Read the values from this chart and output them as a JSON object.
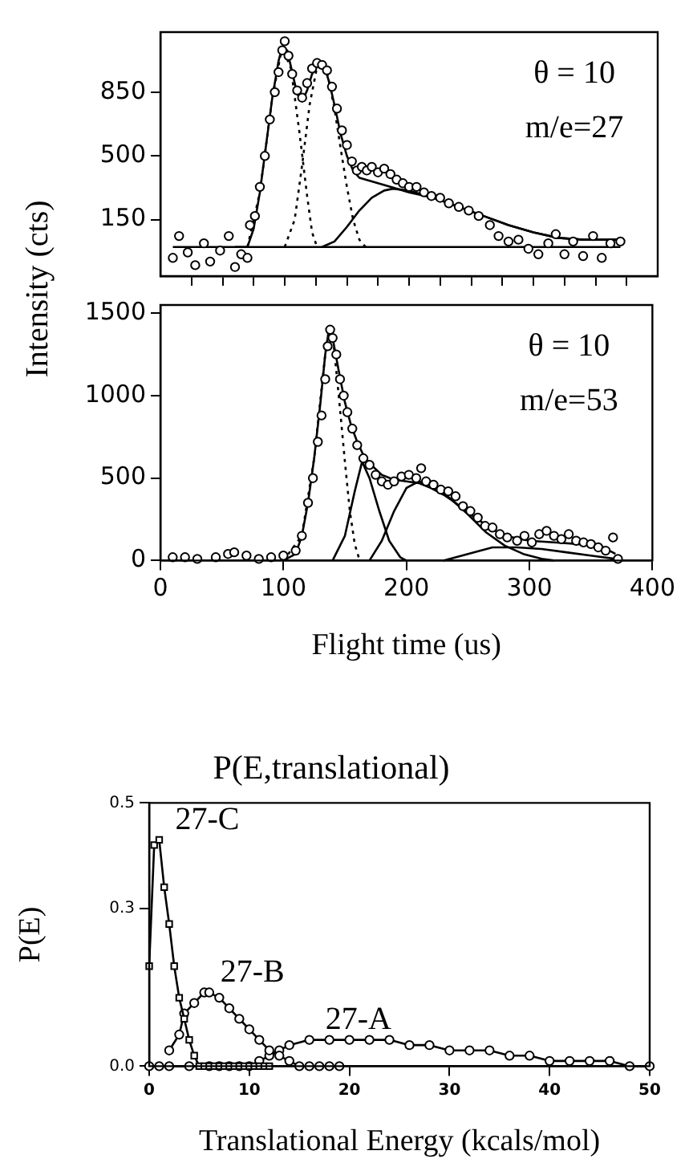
{
  "chart_data": [
    {
      "type": "line",
      "annotations": [
        "θ = 10",
        "m/e=27"
      ],
      "ylabel": "Intensity (cts)",
      "xlim": [
        0,
        400
      ],
      "ylim": [
        -160,
        1180
      ],
      "xticks": [
        {
          "value": 25,
          "label": null
        },
        {
          "value": 50,
          "label": null
        },
        {
          "value": 75,
          "label": null
        },
        {
          "value": 100,
          "label": null
        },
        {
          "value": 125,
          "label": null
        },
        {
          "value": 150,
          "label": null
        },
        {
          "value": 175,
          "label": null
        },
        {
          "value": 200,
          "label": null
        },
        {
          "value": 225,
          "label": null
        },
        {
          "value": 250,
          "label": null
        },
        {
          "value": 275,
          "label": null
        },
        {
          "value": 300,
          "label": null
        },
        {
          "value": 325,
          "label": null
        },
        {
          "value": 350,
          "label": null
        },
        {
          "value": 375,
          "label": null
        }
      ],
      "yticks": [
        150,
        500,
        850
      ],
      "tick_labels": "y",
      "grid": false,
      "legend": false,
      "series": [
        {
          "type": "scatter",
          "marker": "circle",
          "color": "#000000",
          "x": [
            10,
            15,
            22,
            28,
            35,
            40,
            48,
            55,
            60,
            65,
            70,
            72,
            76,
            80,
            84,
            88,
            92,
            95,
            98,
            100,
            103,
            106,
            110,
            114,
            118,
            122,
            126,
            130,
            134,
            138,
            142,
            146,
            150,
            154,
            158,
            162,
            166,
            170,
            175,
            180,
            185,
            190,
            195,
            200,
            206,
            212,
            218,
            225,
            232,
            240,
            248,
            256,
            265,
            272,
            280,
            288,
            296,
            304,
            312,
            318,
            325,
            332,
            340,
            348,
            355,
            362,
            370
          ],
          "values": [
            -60,
            60,
            -30,
            -100,
            20,
            -80,
            -20,
            60,
            -110,
            -40,
            -60,
            120,
            170,
            330,
            500,
            700,
            850,
            960,
            1080,
            1130,
            1050,
            950,
            860,
            820,
            900,
            980,
            1010,
            1000,
            970,
            880,
            760,
            640,
            560,
            470,
            420,
            440,
            420,
            440,
            410,
            430,
            400,
            370,
            350,
            330,
            330,
            300,
            280,
            270,
            240,
            220,
            200,
            170,
            120,
            60,
            30,
            40,
            -10,
            -40,
            20,
            70,
            -40,
            30,
            -50,
            60,
            -60,
            20,
            30
          ]
        },
        {
          "type": "line",
          "marker": "none",
          "line_style": "solid",
          "color": "#000000",
          "x": [
            60,
            70,
            75,
            80,
            85,
            90,
            95,
            98,
            102,
            106,
            110,
            114,
            118,
            122,
            128,
            132,
            136,
            140,
            145,
            150,
            155,
            160,
            170,
            180,
            190,
            200,
            220,
            240,
            260,
            280,
            300,
            320,
            340,
            370
          ],
          "values": [
            0,
            0,
            100,
            300,
            560,
            820,
            1020,
            1100,
            1080,
            960,
            840,
            800,
            860,
            950,
            1010,
            990,
            900,
            780,
            620,
            500,
            420,
            380,
            360,
            340,
            320,
            300,
            270,
            220,
            170,
            120,
            80,
            50,
            40,
            40
          ]
        },
        {
          "type": "line",
          "marker": "none",
          "line_style": "dotted",
          "color": "#000000",
          "x": [
            70,
            80,
            90,
            98,
            105,
            112,
            118,
            122,
            126
          ],
          "values": [
            0,
            300,
            820,
            1100,
            980,
            620,
            280,
            80,
            0
          ]
        },
        {
          "type": "line",
          "marker": "none",
          "line_style": "dotted",
          "color": "#000000",
          "x": [
            100,
            108,
            114,
            120,
            126,
            128,
            134,
            140,
            145,
            150,
            155,
            160,
            165
          ],
          "values": [
            0,
            150,
            450,
            780,
            990,
            1010,
            960,
            760,
            540,
            330,
            150,
            40,
            0
          ]
        },
        {
          "type": "line",
          "marker": "none",
          "line_style": "solid",
          "color": "#000000",
          "x": [
            130,
            140,
            150,
            160,
            170,
            180,
            187,
            200,
            220,
            240,
            260,
            280,
            300,
            320,
            340,
            370
          ],
          "values": [
            0,
            30,
            110,
            200,
            270,
            310,
            320,
            310,
            270,
            220,
            170,
            120,
            80,
            50,
            40,
            40
          ]
        },
        {
          "type": "line",
          "marker": "none",
          "line_style": "solid",
          "color": "#000000",
          "x": [
            10,
            370
          ],
          "values": [
            0,
            0
          ]
        }
      ]
    },
    {
      "type": "line",
      "annotations": [
        "θ = 10",
        "m/e=53"
      ],
      "xlabel": "Flight time (us)",
      "xlim": [
        0,
        400
      ],
      "ylim": [
        0,
        1550
      ],
      "xticks": [
        0,
        100,
        200,
        300,
        400
      ],
      "yticks": [
        0,
        500,
        1000,
        1500
      ],
      "grid": false,
      "legend": false,
      "series": [
        {
          "type": "scatter",
          "marker": "circle",
          "color": "#000000",
          "x": [
            10,
            20,
            30,
            45,
            55,
            60,
            70,
            80,
            90,
            100,
            110,
            115,
            120,
            124,
            128,
            131,
            134,
            136,
            138,
            140,
            143,
            146,
            149,
            152,
            156,
            160,
            165,
            170,
            175,
            180,
            185,
            190,
            196,
            202,
            208,
            212,
            216,
            222,
            228,
            234,
            240,
            246,
            252,
            258,
            264,
            270,
            276,
            282,
            290,
            296,
            302,
            308,
            314,
            320,
            326,
            332,
            338,
            344,
            350,
            356,
            362,
            368,
            372
          ],
          "values": [
            20,
            20,
            10,
            20,
            40,
            50,
            30,
            10,
            20,
            30,
            60,
            150,
            350,
            500,
            720,
            880,
            1100,
            1300,
            1400,
            1350,
            1250,
            1100,
            1000,
            900,
            800,
            700,
            620,
            580,
            520,
            480,
            460,
            480,
            510,
            520,
            500,
            560,
            480,
            460,
            430,
            420,
            390,
            330,
            300,
            260,
            210,
            200,
            160,
            140,
            120,
            150,
            110,
            160,
            180,
            150,
            130,
            160,
            120,
            110,
            100,
            80,
            60,
            140,
            10
          ]
        },
        {
          "type": "line",
          "marker": "none",
          "line_style": "solid",
          "color": "#000000",
          "x": [
            100,
            110,
            115,
            120,
            125,
            130,
            134,
            137,
            140,
            145,
            150,
            155,
            160,
            165,
            170,
            180,
            190,
            200,
            210,
            220,
            230,
            240,
            250,
            260,
            270,
            280,
            300,
            320,
            340,
            360,
            370
          ],
          "values": [
            0,
            40,
            150,
            350,
            620,
            950,
            1250,
            1400,
            1350,
            1150,
            960,
            820,
            720,
            640,
            590,
            520,
            490,
            480,
            470,
            440,
            400,
            350,
            290,
            240,
            190,
            150,
            120,
            110,
            100,
            80,
            40
          ]
        },
        {
          "type": "line",
          "marker": "none",
          "line_style": "dotted",
          "color": "#000000",
          "x": [
            100,
            115,
            125,
            134,
            137,
            141,
            145,
            150,
            154,
            158,
            162
          ],
          "values": [
            0,
            150,
            620,
            1250,
            1400,
            1300,
            1000,
            600,
            300,
            100,
            0
          ]
        },
        {
          "type": "line",
          "marker": "none",
          "line_style": "solid",
          "color": "#000000",
          "x": [
            140,
            150,
            158,
            164,
            170,
            178,
            186,
            195,
            200
          ],
          "values": [
            0,
            150,
            420,
            600,
            500,
            300,
            120,
            20,
            0
          ]
        },
        {
          "type": "line",
          "marker": "none",
          "line_style": "solid",
          "color": "#000000",
          "x": [
            170,
            180,
            190,
            200,
            210,
            220,
            235,
            250,
            265,
            280,
            295,
            310,
            320
          ],
          "values": [
            0,
            120,
            300,
            440,
            480,
            460,
            380,
            280,
            170,
            90,
            40,
            10,
            0
          ]
        },
        {
          "type": "line",
          "marker": "none",
          "line_style": "solid",
          "color": "#000000",
          "x": [
            230,
            250,
            270,
            290,
            310,
            330,
            350,
            370
          ],
          "values": [
            0,
            40,
            80,
            80,
            70,
            50,
            30,
            10
          ]
        }
      ]
    },
    {
      "type": "line",
      "title": "P(E,translational)",
      "xlabel": "Translational Energy (kcals/mol)",
      "ylabel": "P(E)",
      "xlim": [
        0,
        50
      ],
      "ylim": [
        0,
        0.5
      ],
      "xticks": [
        0,
        10,
        20,
        30,
        40,
        50
      ],
      "yticks": [
        {
          "value": 0,
          "label": "0.0"
        },
        0.3,
        0.5
      ],
      "grid": false,
      "legend": false,
      "series": [
        {
          "name": "27-C",
          "marker": "square",
          "line_style": "solid",
          "color": "#000000",
          "x": [
            0,
            0.5,
            1,
            1.5,
            2,
            2.5,
            3,
            3.5,
            4,
            4.5,
            5,
            5.5,
            6,
            6.5,
            7,
            7.5,
            8,
            8.5,
            9,
            9.5,
            10,
            10.5,
            11,
            11.5,
            12
          ],
          "values": [
            0.19,
            0.42,
            0.43,
            0.34,
            0.27,
            0.19,
            0.13,
            0.09,
            0.05,
            0.02,
            0,
            0,
            0,
            0,
            0,
            0,
            0,
            0,
            0,
            0,
            0,
            0,
            0,
            0,
            0
          ]
        },
        {
          "name": "27-B",
          "marker": "circle",
          "line_style": "solid",
          "color": "#000000",
          "x": [
            2,
            3,
            3.5,
            4.5,
            5.5,
            6,
            7,
            8,
            9,
            10,
            11,
            12,
            13,
            14,
            15,
            16,
            17,
            18,
            19
          ],
          "values": [
            0.03,
            0.06,
            0.1,
            0.12,
            0.14,
            0.14,
            0.13,
            0.11,
            0.09,
            0.07,
            0.05,
            0.03,
            0.02,
            0.01,
            0,
            0,
            0,
            0,
            0
          ]
        },
        {
          "name": "27-A",
          "marker": "circle",
          "line_style": "solid",
          "color": "#000000",
          "x": [
            0,
            1,
            2,
            4,
            6,
            7,
            8,
            9,
            10,
            11,
            12,
            13,
            14,
            16,
            18,
            20,
            22,
            24,
            26,
            28,
            30,
            32,
            34,
            36,
            38,
            40,
            42,
            44,
            46,
            48,
            50
          ],
          "values": [
            0,
            0,
            0,
            0,
            0,
            0,
            0,
            0,
            0,
            0.01,
            0.02,
            0.03,
            0.04,
            0.05,
            0.05,
            0.05,
            0.05,
            0.05,
            0.04,
            0.04,
            0.03,
            0.03,
            0.03,
            0.02,
            0.02,
            0.01,
            0.01,
            0.01,
            0.01,
            0,
            0
          ]
        }
      ]
    }
  ]
}
